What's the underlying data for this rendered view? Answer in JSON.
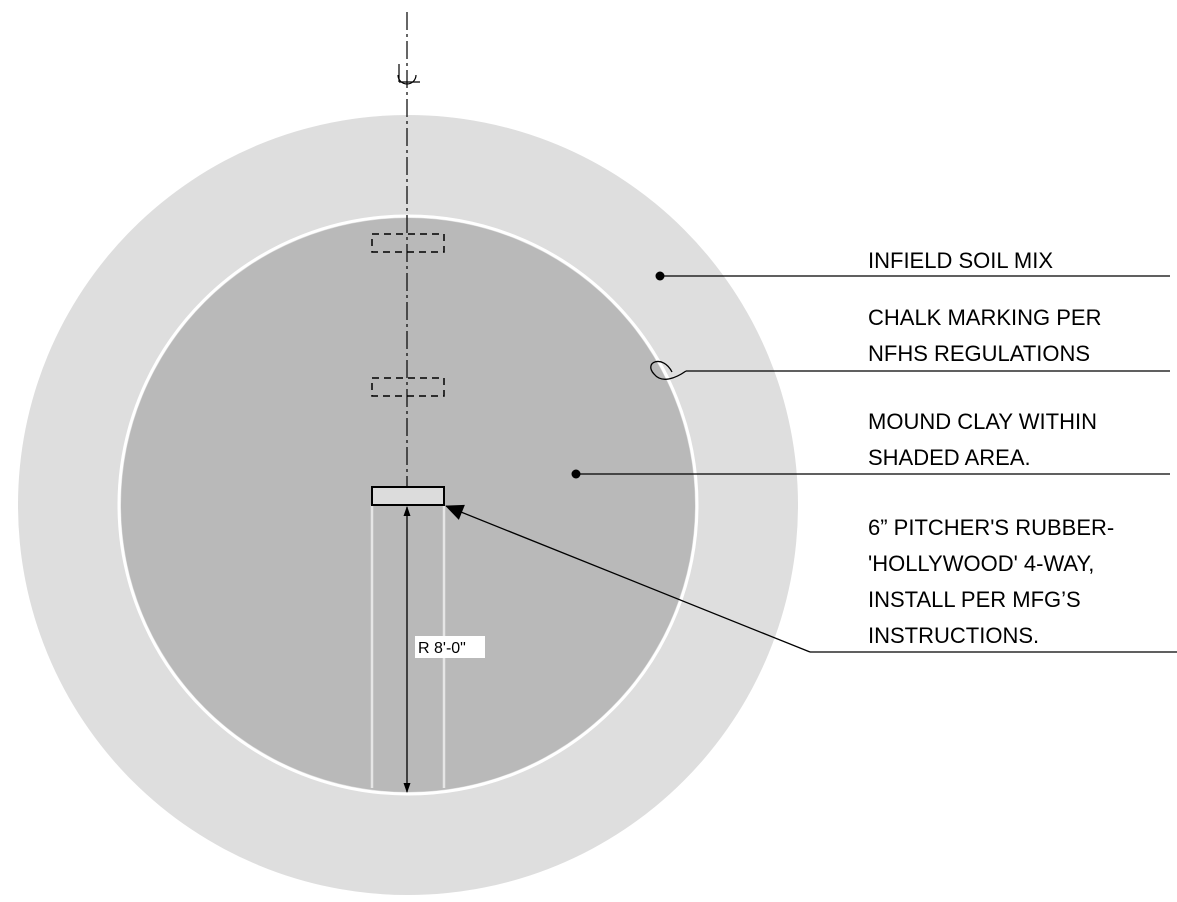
{
  "drawing": {
    "centerline_symbol": "centerline-symbol",
    "dimension_label": "R 8'-0\"",
    "colors": {
      "infield_soil": "#dedede",
      "mound_clay": "#b9b9b9",
      "chalk_line": "#ffffff",
      "rubber_fill": "#dcdcdc",
      "ink": "#000000"
    }
  },
  "callouts": [
    {
      "lines": [
        "INFIELD SOIL MIX"
      ]
    },
    {
      "lines": [
        "CHALK MARKING PER",
        "NFHS REGULATIONS"
      ]
    },
    {
      "lines": [
        "MOUND CLAY WITHIN",
        "SHADED AREA."
      ]
    },
    {
      "lines": [
        "6” PITCHER'S RUBBER-",
        "'HOLLYWOOD' 4-WAY,",
        "INSTALL  PER MFG’S",
        "INSTRUCTIONS."
      ]
    }
  ]
}
